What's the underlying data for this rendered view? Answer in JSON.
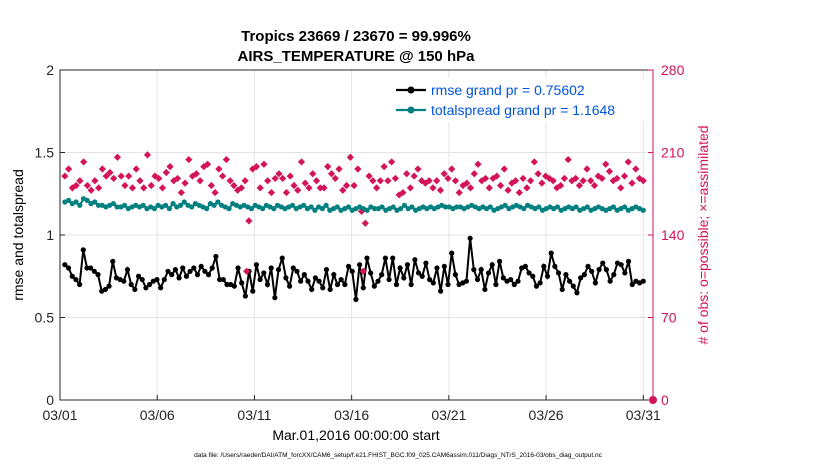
{
  "chart_data": {
    "type": "line",
    "title_line1": "Tropics 23669 / 23670 = 99.996%",
    "title_line2": "AIRS_TEMPERATURE @ 150 hPa",
    "xlabel": "Mar.01,2016 00:00:00 start",
    "ylabel_left": "rmse and totalspread",
    "ylabel_right": "# of obs: o=possible; ×=assimilated",
    "footer": "data file: /Users/raeder/DAI/ATM_forcXX/CAM6_setup/f.e21.FHIST_BGC.f09_025.CAM6assim.011/Diags_NTrS_2016-03/obs_diag_output.nc",
    "x_ticks": [
      "03/01",
      "03/06",
      "03/11",
      "03/16",
      "03/21",
      "03/26",
      "03/31"
    ],
    "x_tick_days": [
      0,
      5,
      10,
      15,
      20,
      25,
      30
    ],
    "x_range": [
      0,
      30.5
    ],
    "ylim_left": [
      0,
      2
    ],
    "y_ticks_left": [
      "0",
      "0.5",
      "1",
      "1.5",
      "2"
    ],
    "ylim_right": [
      0,
      280
    ],
    "y_ticks_right": [
      "0",
      "70",
      "140",
      "210",
      "280"
    ],
    "colors": {
      "rmse": "#000000",
      "spread": "#00807f",
      "obs": "#d4145a",
      "legend_text": "#0055dd"
    },
    "series": [
      {
        "name": "rmse grand pr = 0.75602",
        "values": [
          0.82,
          0.8,
          0.75,
          0.73,
          0.7,
          0.91,
          0.8,
          0.8,
          0.78,
          0.76,
          0.66,
          0.67,
          0.69,
          0.84,
          0.74,
          0.73,
          0.72,
          0.79,
          0.7,
          0.67,
          0.75,
          0.73,
          0.68,
          0.7,
          0.72,
          0.73,
          0.68,
          0.73,
          0.78,
          0.76,
          0.79,
          0.74,
          0.8,
          0.75,
          0.78,
          0.8,
          0.76,
          0.81,
          0.78,
          0.76,
          0.8,
          0.87,
          0.73,
          0.73,
          0.7,
          0.7,
          0.69,
          0.8,
          0.71,
          0.63,
          0.78,
          0.66,
          0.82,
          0.73,
          0.77,
          0.7,
          0.8,
          0.62,
          0.79,
          0.86,
          0.74,
          0.69,
          0.8,
          0.78,
          0.72,
          0.76,
          0.72,
          0.67,
          0.74,
          0.72,
          0.68,
          0.79,
          0.67,
          0.76,
          0.7,
          0.73,
          0.7,
          0.81,
          0.78,
          0.61,
          0.82,
          0.68,
          0.86,
          0.77,
          0.69,
          0.72,
          0.76,
          0.86,
          0.73,
          0.86,
          0.7,
          0.8,
          0.74,
          0.82,
          0.7,
          0.85,
          0.77,
          0.75,
          0.83,
          0.73,
          0.71,
          0.8,
          0.66,
          0.81,
          0.7,
          0.89,
          0.76,
          0.7,
          0.71,
          0.72,
          0.98,
          0.79,
          0.73,
          0.79,
          0.67,
          0.77,
          0.82,
          0.7,
          0.84,
          0.74,
          0.72,
          0.73,
          0.7,
          0.72,
          0.8,
          0.81,
          0.77,
          0.75,
          0.69,
          0.71,
          0.81,
          0.75,
          0.89,
          0.81,
          0.77,
          0.67,
          0.76,
          0.72,
          0.69,
          0.65,
          0.74,
          0.76,
          0.81,
          0.78,
          0.71,
          0.79,
          0.83,
          0.79,
          0.72,
          0.76,
          0.83,
          0.82,
          0.77,
          0.84,
          0.7,
          0.72,
          0.71,
          0.72
        ]
      },
      {
        "name": "totalspread grand pr = 1.1648",
        "values": [
          1.2,
          1.21,
          1.19,
          1.2,
          1.18,
          1.22,
          1.21,
          1.19,
          1.2,
          1.18,
          1.18,
          1.17,
          1.18,
          1.19,
          1.17,
          1.17,
          1.18,
          1.16,
          1.17,
          1.18,
          1.17,
          1.18,
          1.16,
          1.17,
          1.16,
          1.18,
          1.17,
          1.18,
          1.16,
          1.19,
          1.17,
          1.18,
          1.2,
          1.18,
          1.17,
          1.19,
          1.18,
          1.17,
          1.16,
          1.19,
          1.18,
          1.2,
          1.18,
          1.17,
          1.16,
          1.19,
          1.18,
          1.17,
          1.18,
          1.17,
          1.16,
          1.18,
          1.17,
          1.16,
          1.18,
          1.17,
          1.16,
          1.18,
          1.17,
          1.16,
          1.17,
          1.18,
          1.16,
          1.17,
          1.18,
          1.16,
          1.17,
          1.15,
          1.17,
          1.16,
          1.18,
          1.15,
          1.16,
          1.17,
          1.15,
          1.16,
          1.17,
          1.15,
          1.16,
          1.17,
          1.16,
          1.15,
          1.17,
          1.16,
          1.16,
          1.17,
          1.15,
          1.16,
          1.17,
          1.15,
          1.16,
          1.18,
          1.16,
          1.17,
          1.15,
          1.16,
          1.17,
          1.16,
          1.17,
          1.16,
          1.17,
          1.18,
          1.17,
          1.17,
          1.16,
          1.17,
          1.17,
          1.16,
          1.17,
          1.18,
          1.17,
          1.16,
          1.17,
          1.16,
          1.17,
          1.15,
          1.16,
          1.17,
          1.18,
          1.16,
          1.17,
          1.18,
          1.17,
          1.16,
          1.18,
          1.17,
          1.16,
          1.17,
          1.15,
          1.16,
          1.17,
          1.16,
          1.17,
          1.15,
          1.16,
          1.17,
          1.16,
          1.17,
          1.15,
          1.16,
          1.17,
          1.15,
          1.16,
          1.17,
          1.16,
          1.15,
          1.16,
          1.17,
          1.15,
          1.16,
          1.17,
          1.15,
          1.16,
          1.17,
          1.16,
          1.15
        ]
      },
      {
        "name": "# of obs assimilated",
        "axis": "right",
        "values": [
          190,
          196,
          180,
          182,
          186,
          202,
          182,
          178,
          186,
          180,
          196,
          190,
          193,
          188,
          206,
          190,
          182,
          190,
          180,
          196,
          186,
          180,
          208,
          182,
          190,
          188,
          180,
          193,
          198,
          186,
          188,
          176,
          184,
          204,
          190,
          192,
          186,
          198,
          200,
          182,
          176,
          196,
          190,
          204,
          186,
          182,
          178,
          180,
          186,
          152,
          196,
          198,
          180,
          200,
          186,
          176,
          188,
          192,
          188,
          176,
          190,
          182,
          178,
          202,
          184,
          180,
          192,
          186,
          180,
          180,
          198,
          192,
          188,
          196,
          178,
          182,
          206,
          182,
          196,
          160,
          150,
          190,
          186,
          180,
          186,
          198,
          186,
          202,
          188,
          174,
          176,
          192,
          180,
          190,
          196,
          186,
          184,
          186,
          180,
          186,
          178,
          192,
          188,
          196,
          186,
          176,
          182,
          184,
          180,
          192,
          200,
          186,
          188,
          180,
          188,
          190,
          182,
          196,
          178,
          184,
          186,
          176,
          188,
          180,
          186,
          202,
          192,
          184,
          190,
          188,
          186,
          180,
          182,
          188,
          204,
          186,
          188,
          182,
          186,
          196,
          186,
          182,
          190,
          188,
          200,
          194,
          186,
          188,
          180,
          190,
          202,
          184,
          196,
          188,
          186
        ]
      },
      {
        "name": "# of obs possible",
        "axis": "right",
        "values": [
          0
        ]
      }
    ],
    "highlight_points": [
      {
        "day": 9.6,
        "value": 0.78
      },
      {
        "day": 15.6,
        "value": 0.78
      }
    ]
  }
}
